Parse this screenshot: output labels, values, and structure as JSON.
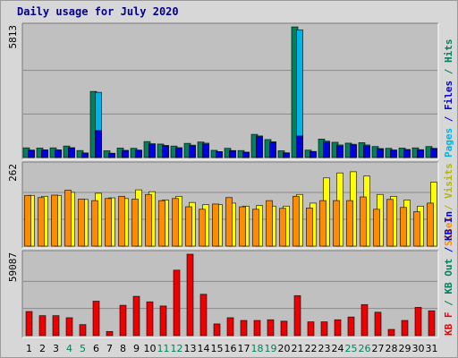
{
  "title": "Daily usage for July 2020",
  "colors": {
    "frame": "#d7d7d7",
    "panel": "#c0c0c0",
    "grid": "#8a8a8a",
    "hits": "#00805c",
    "files": "#0000e0",
    "pages": "#00b4e8",
    "visits": "#ffff00",
    "sites": "#ff8c00",
    "kbytes": "#ee0000",
    "day_weekday": "#000000",
    "day_weekend": "#00805c"
  },
  "chart_data": [
    {
      "type": "bar",
      "panel": "hits_files_pages",
      "ymax_label": "5813",
      "ymax": 5813,
      "right_label_parts": [
        {
          "text": "Pages",
          "color": "#00b4e8"
        },
        {
          "text": " / ",
          "color": "#0000e0"
        },
        {
          "text": "Files",
          "color": "#0000e0"
        },
        {
          "text": " / ",
          "color": "#00805c"
        },
        {
          "text": "Hits",
          "color": "#00805c"
        }
      ],
      "categories": [
        "1",
        "2",
        "3",
        "4",
        "5",
        "6",
        "7",
        "8",
        "9",
        "10",
        "11",
        "12",
        "13",
        "14",
        "15",
        "16",
        "17",
        "18",
        "19",
        "20",
        "21",
        "22",
        "23",
        "24",
        "25",
        "26",
        "27",
        "28",
        "29",
        "30",
        "31"
      ],
      "series": [
        {
          "name": "Hits",
          "color": "#00805c",
          "values": [
            430,
            420,
            430,
            510,
            310,
            2940,
            300,
            420,
            410,
            710,
            600,
            510,
            630,
            690,
            320,
            410,
            310,
            1030,
            800,
            300,
            5810,
            330,
            820,
            680,
            640,
            660,
            490,
            410,
            420,
            430,
            490
          ]
        },
        {
          "name": "Files",
          "color": "#0000e0",
          "values": [
            320,
            330,
            330,
            420,
            200,
            1200,
            180,
            310,
            320,
            580,
            520,
            410,
            520,
            600,
            260,
            300,
            230,
            930,
            680,
            200,
            960,
            260,
            690,
            520,
            560,
            520,
            380,
            330,
            340,
            330,
            390
          ]
        },
        {
          "name": "Pages",
          "color": "#00b4e8",
          "values": [
            330,
            340,
            340,
            440,
            200,
            2900,
            190,
            320,
            330,
            620,
            540,
            440,
            550,
            640,
            260,
            310,
            240,
            960,
            700,
            210,
            5680,
            270,
            730,
            560,
            590,
            560,
            400,
            330,
            360,
            350,
            410
          ]
        }
      ]
    },
    {
      "type": "bar",
      "panel": "visits_sites",
      "ymax_label": "262",
      "ymax": 262,
      "right_label_parts": [
        {
          "text": "Sites",
          "color": "#ff8c00"
        },
        {
          "text": " / ",
          "color": "#b5b500"
        },
        {
          "text": "Visits",
          "color": "#b5b500"
        }
      ],
      "categories": [
        "1",
        "2",
        "3",
        "4",
        "5",
        "6",
        "7",
        "8",
        "9",
        "10",
        "11",
        "12",
        "13",
        "14",
        "15",
        "16",
        "17",
        "18",
        "19",
        "20",
        "21",
        "22",
        "23",
        "24",
        "25",
        "26",
        "27",
        "28",
        "29",
        "30",
        "31"
      ],
      "series": [
        {
          "name": "Visits",
          "color": "#ffff00",
          "values": [
            165,
            162,
            165,
            175,
            152,
            172,
            157,
            155,
            183,
            177,
            150,
            162,
            142,
            135,
            135,
            140,
            130,
            132,
            130,
            130,
            168,
            140,
            222,
            238,
            242,
            228,
            168,
            162,
            150,
            130,
            208
          ]
        },
        {
          "name": "Sites",
          "color": "#ff8c00",
          "values": [
            165,
            158,
            166,
            182,
            153,
            148,
            155,
            162,
            153,
            168,
            148,
            155,
            128,
            120,
            137,
            158,
            128,
            120,
            148,
            123,
            162,
            124,
            148,
            148,
            148,
            160,
            120,
            152,
            126,
            112,
            140
          ]
        }
      ]
    },
    {
      "type": "bar",
      "panel": "kbytes",
      "ymax_label": "59087",
      "ymax": 59087,
      "right_label_parts": [
        {
          "text": "KB F",
          "color": "#ee0000"
        },
        {
          "text": " / ",
          "color": "#00805c"
        },
        {
          "text": "KB Out",
          "color": "#00805c"
        },
        {
          "text": " / ",
          "color": "#0000e0"
        },
        {
          "text": "KB In",
          "color": "#0000e0"
        }
      ],
      "categories": [
        "1",
        "2",
        "3",
        "4",
        "5",
        "6",
        "7",
        "8",
        "9",
        "10",
        "11",
        "12",
        "13",
        "14",
        "15",
        "16",
        "17",
        "18",
        "19",
        "20",
        "21",
        "22",
        "23",
        "24",
        "25",
        "26",
        "27",
        "28",
        "29",
        "30",
        "31"
      ],
      "series": [
        {
          "name": "KB F",
          "color": "#ee0000",
          "values": [
            17500,
            14500,
            14500,
            13000,
            8000,
            25000,
            3000,
            22000,
            28500,
            24500,
            21500,
            47500,
            59087,
            30000,
            8500,
            13000,
            11000,
            11000,
            11500,
            10500,
            29000,
            10000,
            10000,
            11500,
            13500,
            22500,
            17000,
            4500,
            11000,
            20500,
            18000
          ]
        }
      ]
    }
  ],
  "x_axis": {
    "days": [
      "1",
      "2",
      "3",
      "4",
      "5",
      "6",
      "7",
      "8",
      "9",
      "10",
      "11",
      "12",
      "13",
      "14",
      "15",
      "16",
      "17",
      "18",
      "19",
      "20",
      "21",
      "22",
      "23",
      "24",
      "25",
      "26",
      "27",
      "28",
      "29",
      "30",
      "31"
    ],
    "weekend": [
      false,
      false,
      false,
      true,
      true,
      false,
      false,
      false,
      false,
      false,
      true,
      true,
      false,
      false,
      false,
      false,
      false,
      true,
      true,
      false,
      false,
      false,
      false,
      false,
      true,
      true,
      false,
      false,
      false,
      false,
      false
    ]
  }
}
